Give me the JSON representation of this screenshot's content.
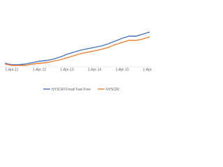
{
  "chart_data": {
    "type": "line",
    "categories": [
      null,
      "1-Apr-11",
      null,
      null,
      null,
      "1-Apr-12",
      null,
      null,
      null,
      "1-Apr-13",
      null,
      null,
      null,
      "1-Apr-14",
      null,
      null,
      null,
      "1-Apr-15",
      null,
      null,
      null,
      "1-Apr-16"
    ],
    "series": [
      {
        "name": "NYSCRI Fossil Fuel Free",
        "color": "#4472c4",
        "values": [
          99,
          97,
          97,
          98,
          100,
          102,
          103,
          105,
          108,
          112,
          115,
          118,
          120,
          122,
          124,
          127,
          131,
          135,
          138,
          138,
          141,
          144
        ]
      },
      {
        "name": "NYSCRI",
        "color": "#ed7d31",
        "values": [
          98,
          96,
          96,
          96,
          98,
          99,
          100,
          102,
          104,
          107,
          110,
          113,
          115,
          117,
          119,
          122,
          126,
          129,
          132,
          132,
          134,
          137
        ]
      }
    ],
    "ylim": [
      60,
      180
    ],
    "legend": "bottom"
  }
}
